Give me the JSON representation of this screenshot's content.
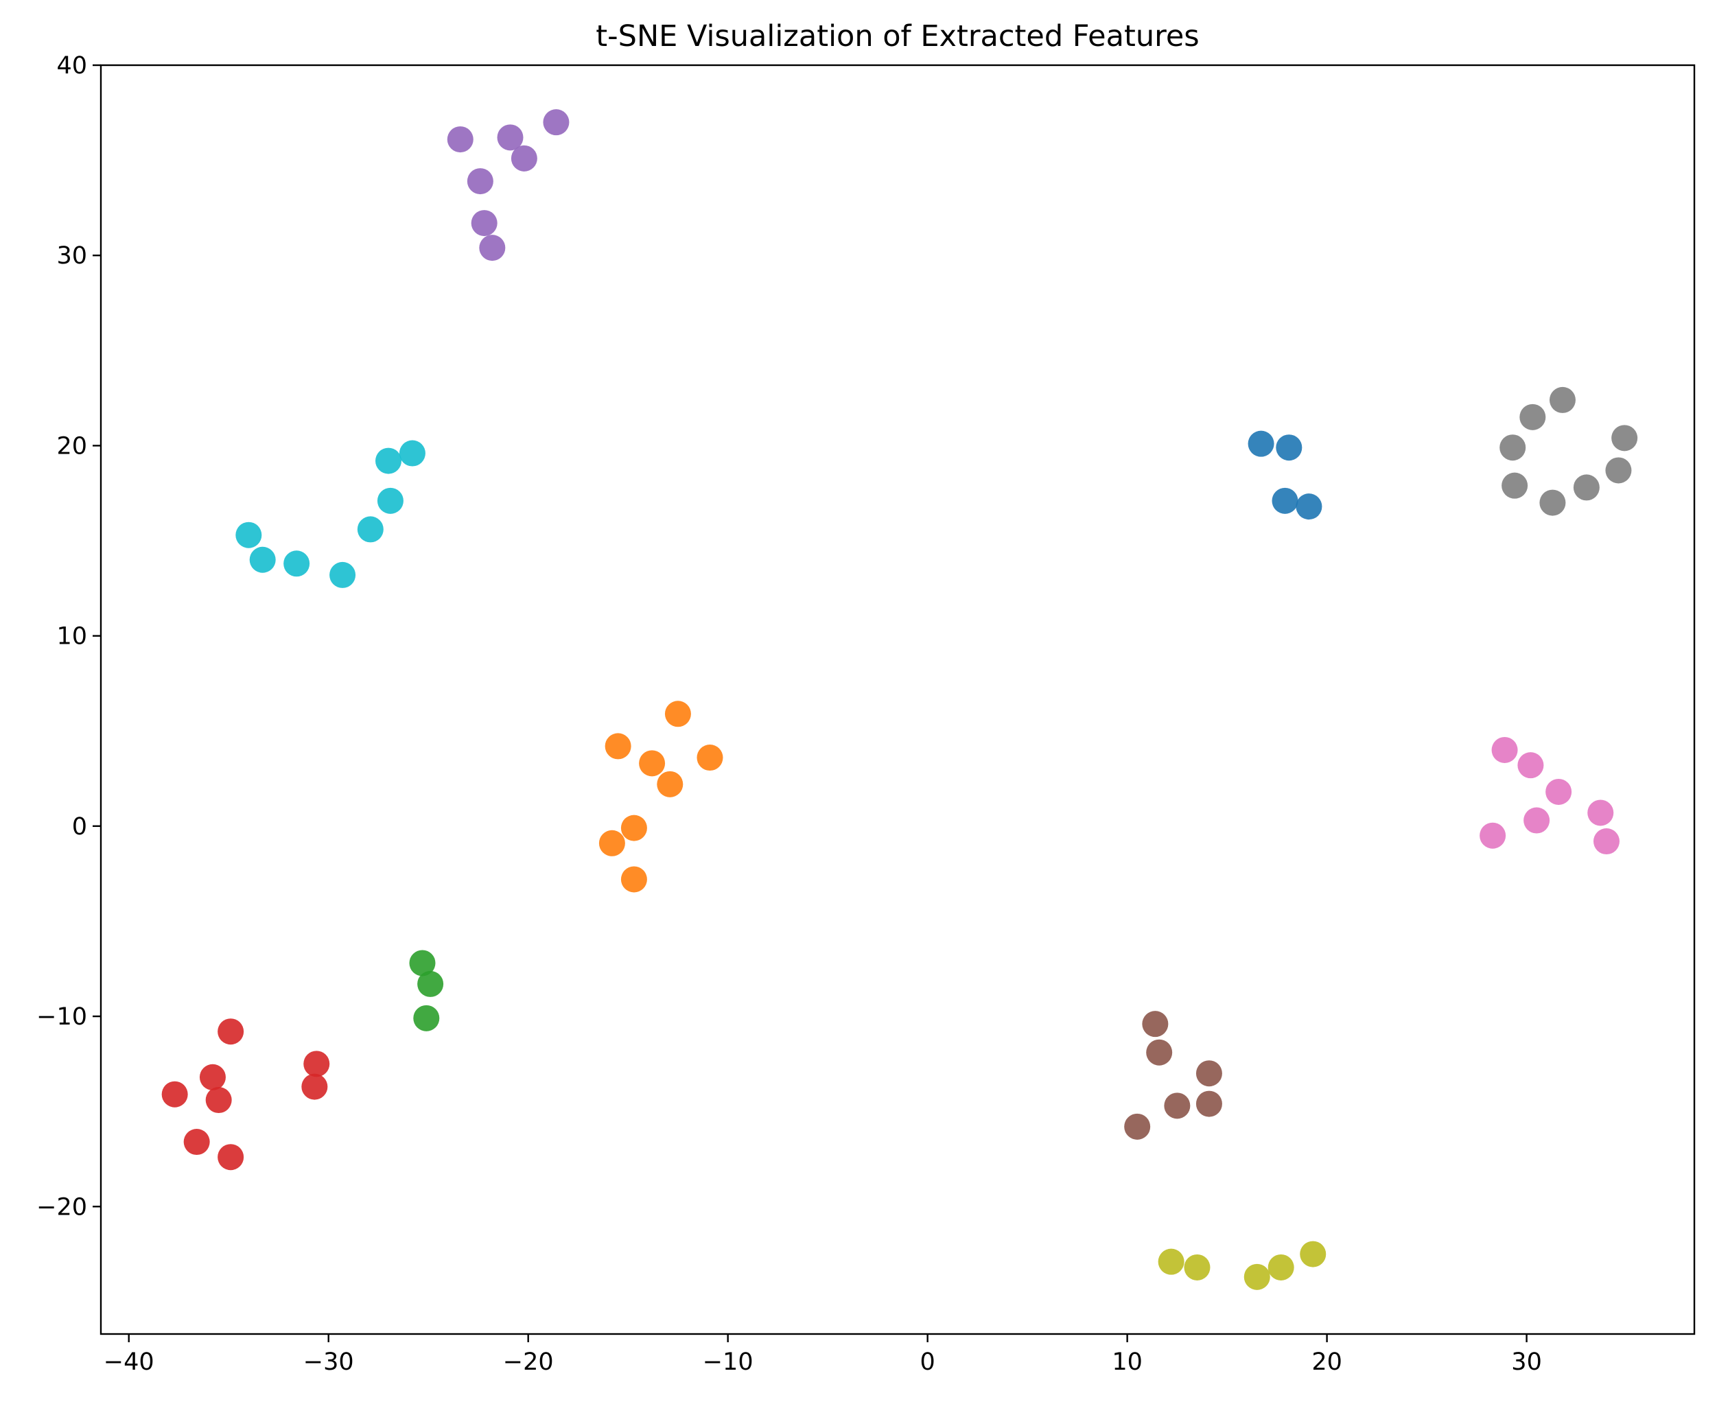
{
  "chart_data": {
    "type": "scatter",
    "title": "t-SNE Visualization of Extracted Features",
    "xlabel": "",
    "ylabel": "",
    "xlim": [
      -41.4,
      38.4
    ],
    "ylim": [
      -26.7,
      40
    ],
    "xticks": [
      -40,
      -30,
      -20,
      -10,
      0,
      10,
      20,
      30
    ],
    "yticks": [
      -20,
      -10,
      0,
      10,
      20,
      30,
      40
    ],
    "xtick_labels": [
      "−40",
      "−30",
      "−20",
      "−10",
      "0",
      "10",
      "20",
      "30"
    ],
    "ytick_labels": [
      "−20",
      "−10",
      "0",
      "10",
      "20",
      "30",
      "40"
    ],
    "grid": false,
    "legend": "none",
    "series": [
      {
        "color": "#1f77b4",
        "points": [
          [
            16.7,
            20.1
          ],
          [
            18.1,
            19.9
          ],
          [
            17.9,
            17.1
          ],
          [
            19.1,
            16.8
          ]
        ]
      },
      {
        "color": "#ff7f0e",
        "points": [
          [
            -12.5,
            5.9
          ],
          [
            -15.5,
            4.2
          ],
          [
            -13.8,
            3.3
          ],
          [
            -10.9,
            3.6
          ],
          [
            -12.9,
            2.2
          ],
          [
            -14.7,
            -0.1
          ],
          [
            -15.8,
            -0.9
          ],
          [
            -14.7,
            -2.8
          ]
        ]
      },
      {
        "color": "#2ca02c",
        "points": [
          [
            -25.3,
            -7.2
          ],
          [
            -24.9,
            -8.3
          ],
          [
            -25.1,
            -10.1
          ]
        ]
      },
      {
        "color": "#d62728",
        "points": [
          [
            -34.9,
            -10.8
          ],
          [
            -30.6,
            -12.5
          ],
          [
            -35.8,
            -13.2
          ],
          [
            -37.7,
            -14.1
          ],
          [
            -30.7,
            -13.7
          ],
          [
            -35.5,
            -14.4
          ],
          [
            -36.6,
            -16.6
          ],
          [
            -34.9,
            -17.4
          ]
        ]
      },
      {
        "color": "#9467bd",
        "points": [
          [
            -18.6,
            37.0
          ],
          [
            -23.4,
            36.1
          ],
          [
            -20.9,
            36.2
          ],
          [
            -20.2,
            35.1
          ],
          [
            -22.4,
            33.9
          ],
          [
            -22.2,
            31.7
          ],
          [
            -21.8,
            30.4
          ]
        ]
      },
      {
        "color": "#8c564b",
        "points": [
          [
            11.4,
            -10.4
          ],
          [
            11.6,
            -11.9
          ],
          [
            14.1,
            -13.0
          ],
          [
            12.5,
            -14.7
          ],
          [
            14.1,
            -14.6
          ],
          [
            10.5,
            -15.8
          ]
        ]
      },
      {
        "color": "#e377c2",
        "points": [
          [
            28.9,
            4.0
          ],
          [
            30.2,
            3.2
          ],
          [
            31.6,
            1.8
          ],
          [
            33.7,
            0.7
          ],
          [
            30.5,
            0.3
          ],
          [
            28.3,
            -0.5
          ],
          [
            34.0,
            -0.8
          ]
        ]
      },
      {
        "color": "#7f7f7f",
        "points": [
          [
            31.8,
            22.4
          ],
          [
            30.3,
            21.5
          ],
          [
            29.3,
            19.9
          ],
          [
            34.9,
            20.4
          ],
          [
            34.6,
            18.7
          ],
          [
            29.4,
            17.9
          ],
          [
            33.0,
            17.8
          ],
          [
            31.3,
            17.0
          ]
        ]
      },
      {
        "color": "#bcbd22",
        "points": [
          [
            12.2,
            -22.9
          ],
          [
            13.5,
            -23.2
          ],
          [
            16.5,
            -23.7
          ],
          [
            17.7,
            -23.2
          ],
          [
            19.3,
            -22.5
          ]
        ]
      },
      {
        "color": "#17becf",
        "points": [
          [
            -25.8,
            19.6
          ],
          [
            -27.0,
            19.2
          ],
          [
            -26.9,
            17.1
          ],
          [
            -27.9,
            15.6
          ],
          [
            -34.0,
            15.3
          ],
          [
            -33.3,
            14.0
          ],
          [
            -31.6,
            13.8
          ],
          [
            -29.3,
            13.2
          ]
        ]
      }
    ]
  }
}
